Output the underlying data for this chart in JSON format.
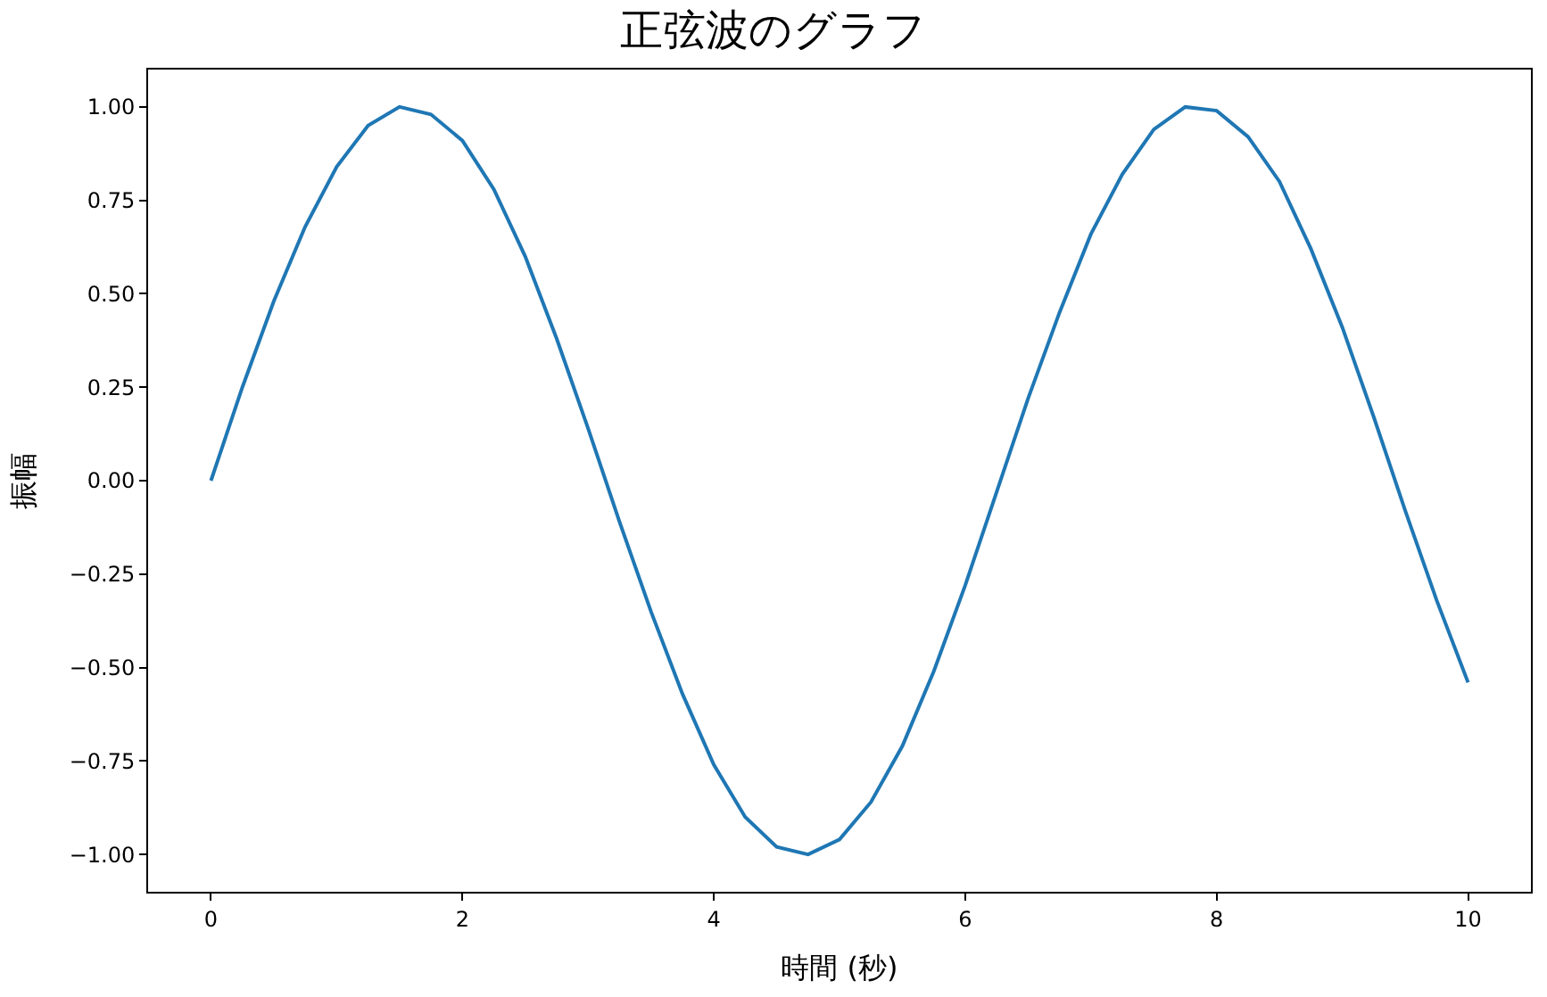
{
  "chart_data": {
    "type": "line",
    "title": "正弦波のグラフ",
    "xlabel": "時間 (秒)",
    "ylabel": "振幅",
    "x": [
      0,
      0.25,
      0.5,
      0.75,
      1,
      1.25,
      1.5,
      1.75,
      2,
      2.25,
      2.5,
      2.75,
      3,
      3.25,
      3.5,
      3.75,
      4,
      4.25,
      4.5,
      4.75,
      5,
      5.25,
      5.5,
      5.75,
      6,
      6.25,
      6.5,
      6.75,
      7,
      7.25,
      7.5,
      7.75,
      8,
      8.25,
      8.5,
      8.75,
      9,
      9.25,
      9.5,
      9.75,
      10
    ],
    "series": [
      {
        "color": "#1f77b4",
        "values": [
          0,
          0.25,
          0.48,
          0.68,
          0.84,
          0.95,
          1.0,
          0.98,
          0.91,
          0.78,
          0.6,
          0.38,
          0.14,
          -0.11,
          -0.35,
          -0.57,
          -0.76,
          -0.9,
          -0.98,
          -1.0,
          -0.96,
          -0.86,
          -0.71,
          -0.51,
          -0.28,
          -0.03,
          0.22,
          0.45,
          0.66,
          0.82,
          0.94,
          1.0,
          0.99,
          0.92,
          0.8,
          0.62,
          0.41,
          0.17,
          -0.08,
          -0.32,
          -0.54
        ]
      }
    ],
    "xlim": [
      -0.5,
      10.5
    ],
    "ylim": [
      -1.1,
      1.1
    ],
    "xticks": [
      0,
      2,
      4,
      6,
      8,
      10
    ],
    "yticks": [
      {
        "value": -1,
        "label": "−1.00"
      },
      {
        "value": -0.75,
        "label": "−0.75"
      },
      {
        "value": -0.5,
        "label": "−0.50"
      },
      {
        "value": -0.25,
        "label": "−0.25"
      },
      {
        "value": 0,
        "label": "0.00"
      },
      {
        "value": 0.25,
        "label": "0.25"
      },
      {
        "value": 0.5,
        "label": "0.50"
      },
      {
        "value": 0.75,
        "label": "0.75"
      },
      {
        "value": 1,
        "label": "1.00"
      }
    ],
    "legend": false,
    "marker": "none",
    "line_style": "solid"
  }
}
